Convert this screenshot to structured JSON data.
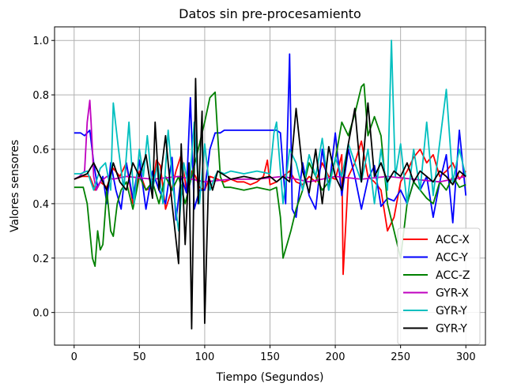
{
  "chart_data": {
    "type": "line",
    "title": "Datos sin pre-procesamiento",
    "xlabel": "Tiempo (Segundos)",
    "ylabel": "Valores sensores",
    "xlim": [
      -15,
      315
    ],
    "ylim": [
      -0.12,
      1.05
    ],
    "xticks": [
      0,
      50,
      100,
      150,
      200,
      250,
      300
    ],
    "yticks": [
      0.0,
      0.2,
      0.4,
      0.6,
      0.8,
      1.0
    ],
    "ytick_labels": [
      "0.0",
      "0.2",
      "0.4",
      "0.6",
      "0.8",
      "1.0"
    ],
    "grid": true,
    "legend_position": "lower-right",
    "series": [
      {
        "name": "ACC-X",
        "color": "#ff0000",
        "x": [
          0,
          6,
          12,
          16,
          20,
          25,
          30,
          35,
          40,
          45,
          50,
          55,
          60,
          63,
          66,
          70,
          74,
          78,
          82,
          86,
          90,
          93,
          96,
          100,
          104,
          110,
          115,
          120,
          125,
          130,
          135,
          140,
          145,
          148,
          150,
          155,
          160,
          165,
          170,
          175,
          180,
          185,
          190,
          195,
          200,
          205,
          206,
          210,
          215,
          220,
          225,
          230,
          235,
          240,
          245,
          250,
          255,
          260,
          265,
          270,
          275,
          280,
          285,
          290,
          295,
          300
        ],
        "y": [
          0.49,
          0.5,
          0.5,
          0.45,
          0.48,
          0.46,
          0.53,
          0.5,
          0.55,
          0.4,
          0.52,
          0.45,
          0.46,
          0.56,
          0.54,
          0.38,
          0.44,
          0.52,
          0.58,
          0.45,
          0.52,
          0.5,
          0.46,
          0.45,
          0.5,
          0.49,
          0.48,
          0.49,
          0.48,
          0.48,
          0.47,
          0.48,
          0.5,
          0.56,
          0.47,
          0.48,
          0.5,
          0.52,
          0.48,
          0.47,
          0.5,
          0.48,
          0.55,
          0.5,
          0.49,
          0.58,
          0.14,
          0.5,
          0.55,
          0.63,
          0.5,
          0.48,
          0.45,
          0.3,
          0.35,
          0.48,
          0.52,
          0.57,
          0.6,
          0.55,
          0.58,
          0.5,
          0.52,
          0.55,
          0.49,
          0.52
        ]
      },
      {
        "name": "ACC-Y",
        "color": "#0000ff",
        "x": [
          0,
          5,
          8,
          12,
          15,
          18,
          22,
          25,
          28,
          32,
          36,
          40,
          45,
          50,
          55,
          60,
          65,
          70,
          75,
          78,
          82,
          86,
          89,
          92,
          96,
          100,
          104,
          108,
          112,
          115,
          120,
          130,
          140,
          150,
          155,
          158,
          162,
          165,
          167,
          170,
          175,
          180,
          185,
          190,
          195,
          200,
          205,
          210,
          215,
          220,
          225,
          230,
          235,
          240,
          245,
          250,
          255,
          260,
          265,
          270,
          275,
          280,
          285,
          290,
          295,
          300
        ],
        "y": [
          0.66,
          0.66,
          0.65,
          0.67,
          0.55,
          0.46,
          0.5,
          0.4,
          0.55,
          0.45,
          0.38,
          0.55,
          0.42,
          0.56,
          0.38,
          0.52,
          0.45,
          0.4,
          0.57,
          0.34,
          0.5,
          0.44,
          0.79,
          0.38,
          0.45,
          0.45,
          0.6,
          0.66,
          0.66,
          0.67,
          0.67,
          0.67,
          0.67,
          0.67,
          0.67,
          0.66,
          0.4,
          0.95,
          0.38,
          0.35,
          0.55,
          0.43,
          0.38,
          0.6,
          0.45,
          0.66,
          0.43,
          0.6,
          0.5,
          0.38,
          0.49,
          0.54,
          0.39,
          0.42,
          0.41,
          0.45,
          0.4,
          0.48,
          0.45,
          0.5,
          0.35,
          0.48,
          0.58,
          0.33,
          0.67,
          0.43
        ]
      },
      {
        "name": "ACC-Z",
        "color": "#008000",
        "x": [
          0,
          4,
          7,
          10,
          12,
          14,
          16,
          18,
          20,
          22,
          25,
          28,
          30,
          33,
          36,
          40,
          45,
          50,
          55,
          60,
          65,
          70,
          75,
          80,
          85,
          90,
          95,
          100,
          104,
          108,
          110,
          112,
          115,
          120,
          130,
          140,
          150,
          155,
          158,
          160,
          163,
          166,
          170,
          175,
          180,
          185,
          190,
          195,
          200,
          205,
          210,
          215,
          220,
          222,
          225,
          230,
          235,
          240,
          245,
          250,
          255,
          260,
          265,
          270,
          275,
          280,
          285,
          290,
          295,
          300
        ],
        "y": [
          0.46,
          0.46,
          0.46,
          0.4,
          0.3,
          0.2,
          0.17,
          0.3,
          0.23,
          0.25,
          0.45,
          0.3,
          0.28,
          0.4,
          0.45,
          0.48,
          0.38,
          0.5,
          0.45,
          0.48,
          0.4,
          0.5,
          0.45,
          0.5,
          0.4,
          0.5,
          0.6,
          0.7,
          0.79,
          0.81,
          0.65,
          0.5,
          0.46,
          0.46,
          0.45,
          0.46,
          0.45,
          0.46,
          0.35,
          0.2,
          0.25,
          0.3,
          0.38,
          0.45,
          0.55,
          0.5,
          0.45,
          0.48,
          0.56,
          0.7,
          0.65,
          0.73,
          0.83,
          0.84,
          0.65,
          0.72,
          0.65,
          0.4,
          0.3,
          0.2,
          0.4,
          0.48,
          0.45,
          0.42,
          0.4,
          0.48,
          0.45,
          0.5,
          0.46,
          0.47
        ]
      },
      {
        "name": "GYR-X",
        "color": "#bf00bf",
        "x": [
          0,
          4,
          8,
          10,
          12,
          13,
          15,
          17,
          20,
          25,
          30,
          40,
          60,
          80,
          100,
          120,
          140,
          160,
          180,
          200,
          220,
          240,
          260,
          280,
          300
        ],
        "y": [
          0.49,
          0.5,
          0.52,
          0.7,
          0.78,
          0.7,
          0.5,
          0.45,
          0.48,
          0.5,
          0.49,
          0.5,
          0.49,
          0.5,
          0.48,
          0.49,
          0.49,
          0.5,
          0.48,
          0.5,
          0.49,
          0.5,
          0.49,
          0.48,
          0.5
        ]
      },
      {
        "name": "GYR-Y",
        "color": "#00bfbf",
        "x": [
          0,
          5,
          10,
          15,
          20,
          24,
          28,
          30,
          34,
          38,
          42,
          46,
          50,
          53,
          56,
          60,
          64,
          68,
          72,
          76,
          80,
          84,
          88,
          92,
          96,
          100,
          104,
          108,
          110,
          115,
          120,
          130,
          140,
          150,
          153,
          155,
          160,
          165,
          170,
          175,
          180,
          185,
          190,
          195,
          200,
          205,
          210,
          215,
          220,
          225,
          230,
          235,
          240,
          243,
          246,
          250,
          255,
          260,
          265,
          270,
          275,
          285,
          290,
          295,
          300
        ],
        "y": [
          0.51,
          0.51,
          0.52,
          0.45,
          0.53,
          0.55,
          0.45,
          0.77,
          0.6,
          0.45,
          0.7,
          0.4,
          0.6,
          0.5,
          0.65,
          0.45,
          0.55,
          0.4,
          0.67,
          0.45,
          0.3,
          0.55,
          0.45,
          0.7,
          0.4,
          0.62,
          0.45,
          0.5,
          0.52,
          0.51,
          0.52,
          0.51,
          0.52,
          0.51,
          0.66,
          0.7,
          0.4,
          0.6,
          0.55,
          0.45,
          0.58,
          0.5,
          0.64,
          0.45,
          0.57,
          0.5,
          0.62,
          0.55,
          0.48,
          0.6,
          0.4,
          0.6,
          0.45,
          1.0,
          0.5,
          0.62,
          0.4,
          0.6,
          0.45,
          0.7,
          0.43,
          0.82,
          0.48,
          0.6,
          0.5
        ]
      },
      {
        "name": "GYR-Y",
        "color": "#000000",
        "x": [
          0,
          5,
          10,
          15,
          20,
          25,
          30,
          35,
          40,
          45,
          50,
          55,
          60,
          62,
          65,
          70,
          75,
          80,
          82,
          85,
          88,
          90,
          93,
          95,
          98,
          100,
          103,
          106,
          110,
          120,
          130,
          140,
          150,
          155,
          160,
          165,
          170,
          175,
          180,
          185,
          190,
          195,
          200,
          205,
          210,
          215,
          220,
          225,
          230,
          235,
          240,
          245,
          250,
          255,
          260,
          265,
          270,
          275,
          280,
          285,
          290,
          295,
          300
        ],
        "y": [
          0.49,
          0.5,
          0.51,
          0.55,
          0.5,
          0.45,
          0.55,
          0.48,
          0.45,
          0.55,
          0.5,
          0.58,
          0.42,
          0.7,
          0.45,
          0.65,
          0.4,
          0.18,
          0.62,
          0.25,
          0.55,
          -0.06,
          0.86,
          0.4,
          0.74,
          -0.04,
          0.5,
          0.45,
          0.52,
          0.49,
          0.5,
          0.49,
          0.5,
          0.48,
          0.5,
          0.48,
          0.75,
          0.52,
          0.44,
          0.6,
          0.4,
          0.61,
          0.5,
          0.45,
          0.62,
          0.75,
          0.48,
          0.77,
          0.5,
          0.55,
          0.48,
          0.52,
          0.5,
          0.55,
          0.48,
          0.52,
          0.5,
          0.48,
          0.52,
          0.5,
          0.47,
          0.52,
          0.5
        ]
      }
    ]
  }
}
